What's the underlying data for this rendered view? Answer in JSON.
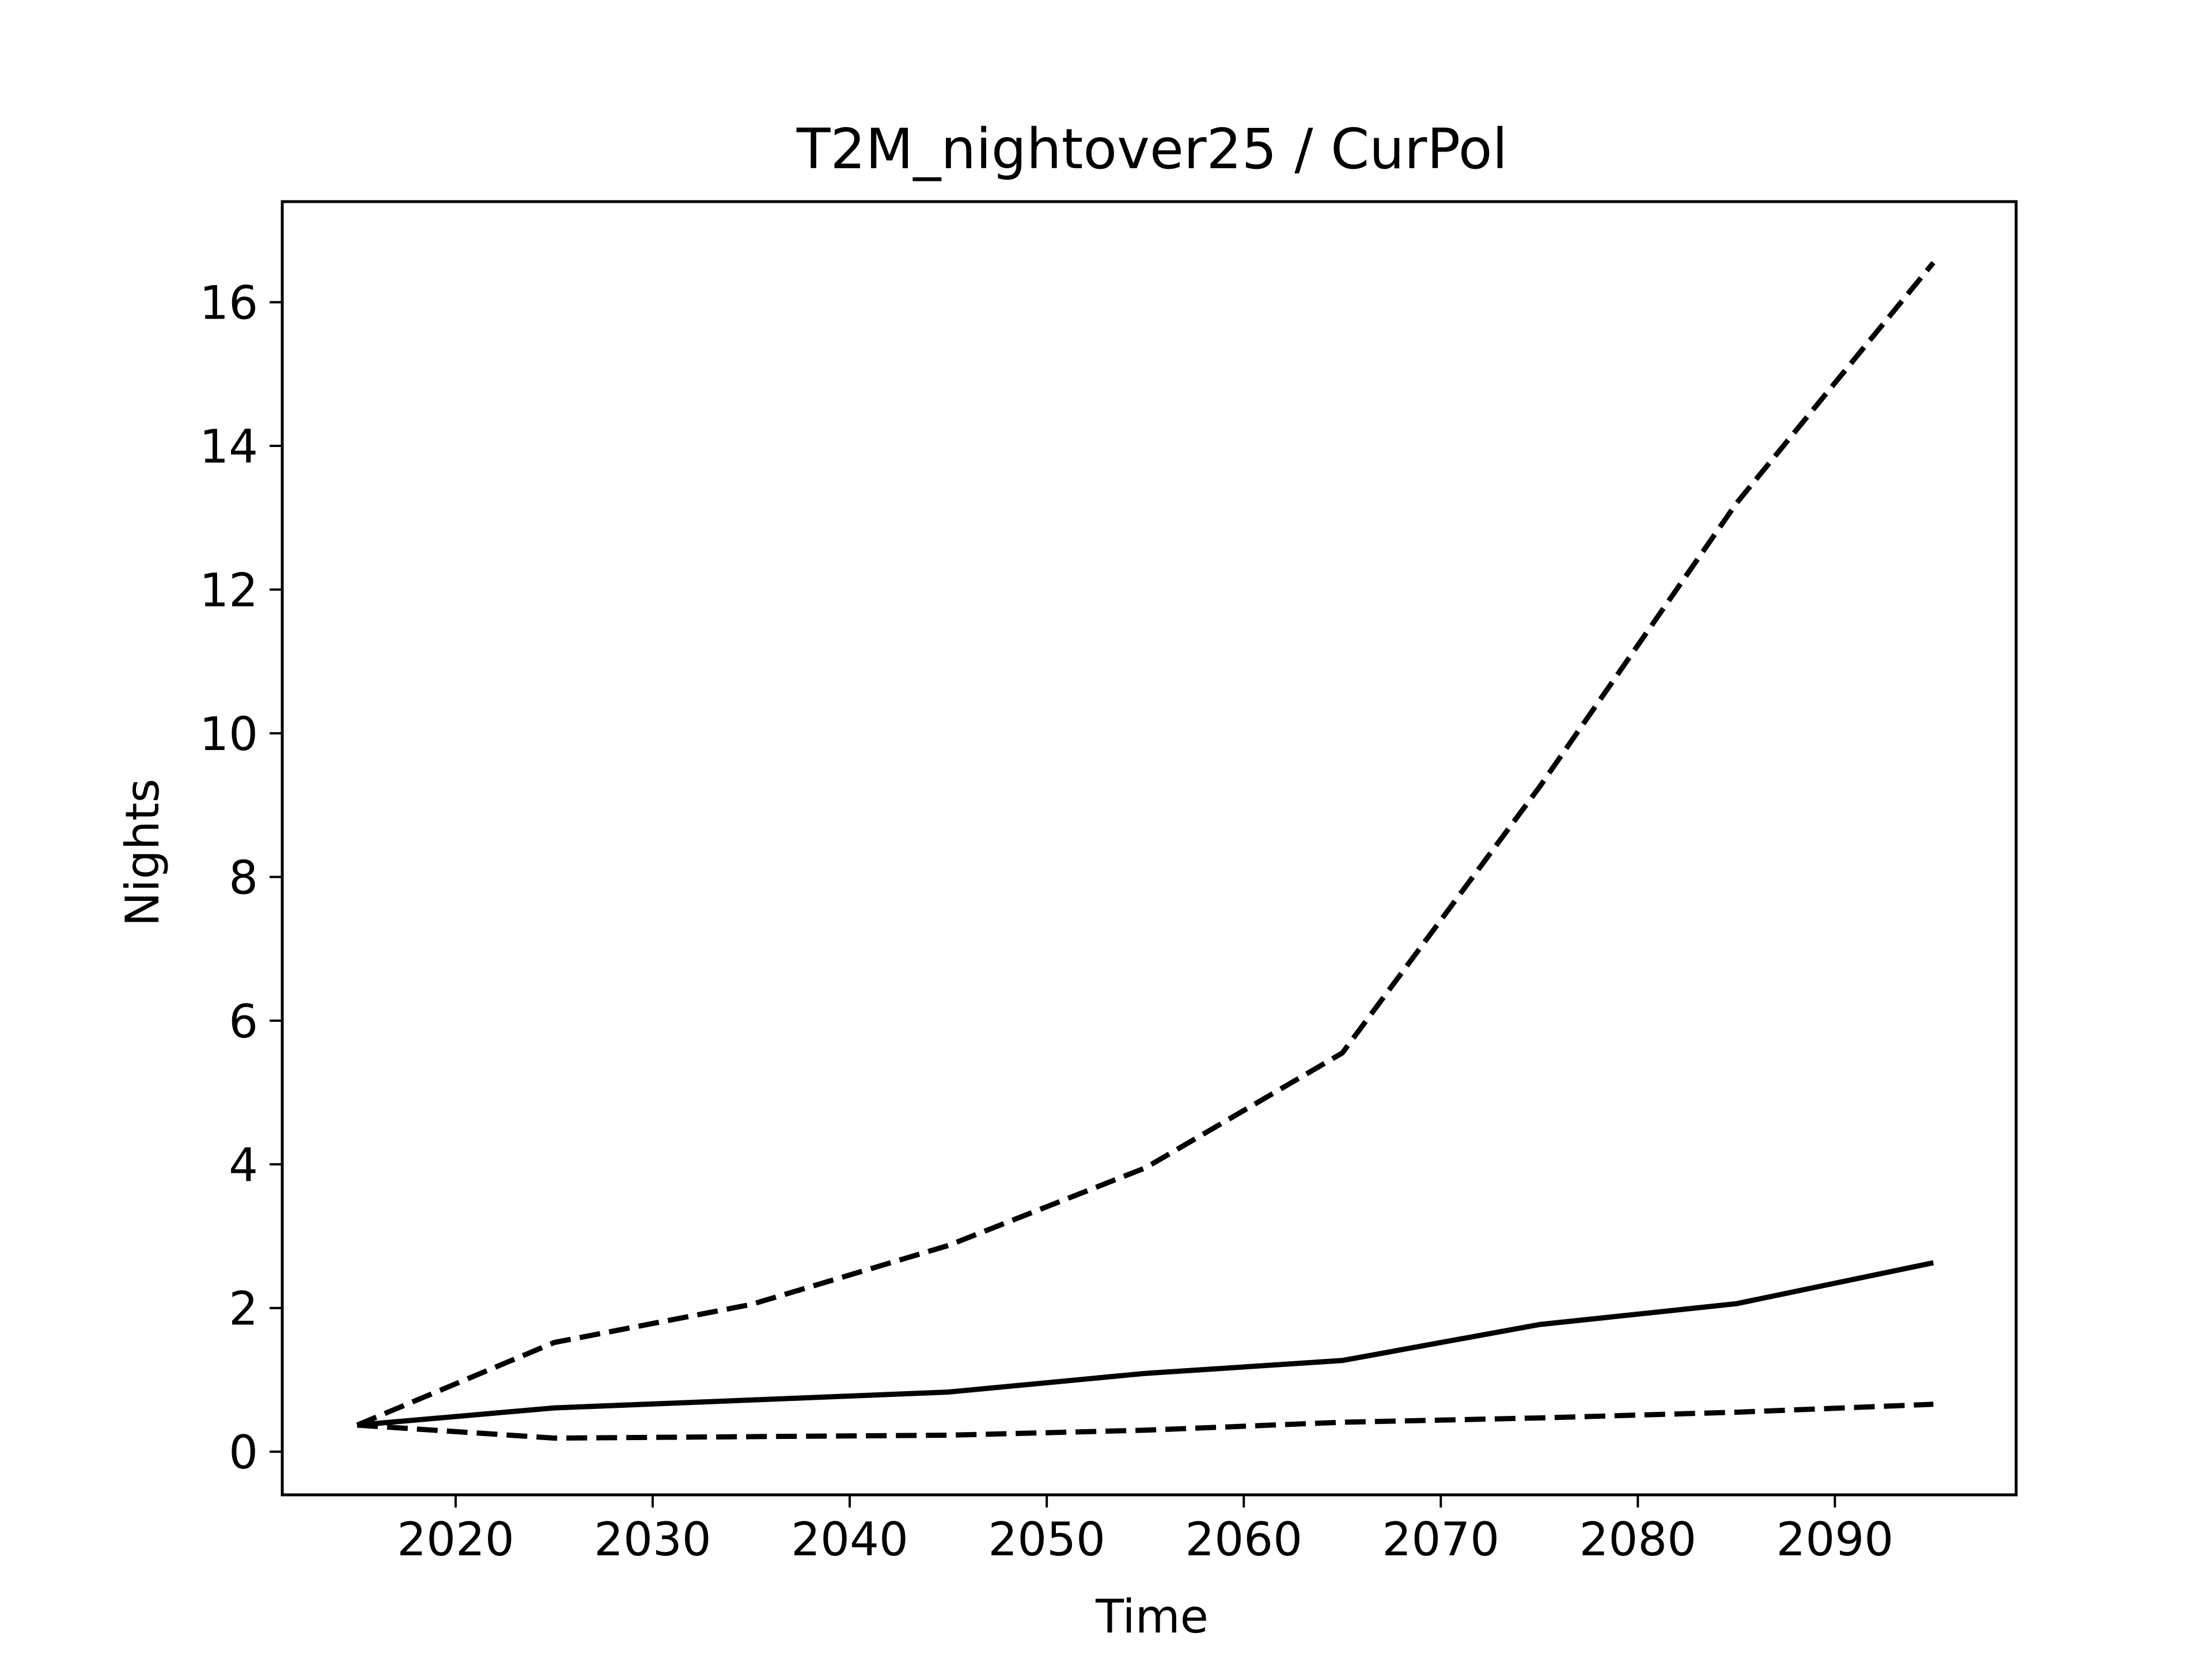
{
  "chart_data": {
    "type": "line",
    "title": "T2M_nightover25 / CurPol",
    "xlabel": "Time",
    "ylabel": "Nights",
    "xlim": [
      2011.2,
      2099.2
    ],
    "ylim": [
      -0.6,
      17.4
    ],
    "xticks": [
      2020,
      2030,
      2040,
      2050,
      2060,
      2070,
      2080,
      2090
    ],
    "yticks": [
      0,
      2,
      4,
      6,
      8,
      10,
      12,
      14,
      16
    ],
    "grid": false,
    "legend": "none",
    "x": [
      2015,
      2025,
      2035,
      2045,
      2055,
      2065,
      2075,
      2085,
      2095
    ],
    "series": [
      {
        "style": "solid",
        "color": "#000000",
        "values": [
          0.37,
          0.61,
          0.72,
          0.83,
          1.09,
          1.27,
          1.77,
          2.06,
          2.63
        ]
      },
      {
        "style": "dashed",
        "color": "#000000",
        "values": [
          0.37,
          1.52,
          2.05,
          2.87,
          3.95,
          5.55,
          9.25,
          13.2,
          16.55
        ]
      },
      {
        "style": "dashed",
        "color": "#000000",
        "values": [
          0.37,
          0.19,
          0.21,
          0.23,
          0.3,
          0.41,
          0.47,
          0.55,
          0.66
        ]
      }
    ]
  }
}
